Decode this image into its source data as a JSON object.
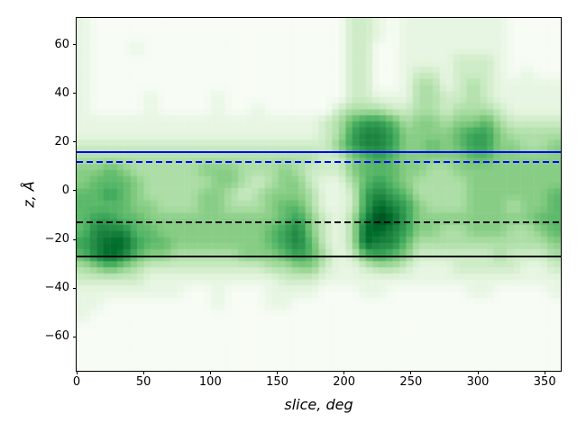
{
  "chart_data": {
    "type": "heatmap",
    "title": "",
    "xlabel": "slice, deg",
    "ylabel": "z, Å",
    "xlim": [
      0,
      362
    ],
    "ylim": [
      -74,
      71
    ],
    "grid": false,
    "xticks": {
      "values": [
        0,
        50,
        100,
        150,
        200,
        250,
        300,
        350
      ],
      "labels": [
        "0",
        "50",
        "100",
        "150",
        "200",
        "250",
        "300",
        "350"
      ]
    },
    "yticks": {
      "values": [
        -60,
        -40,
        -20,
        0,
        20,
        40,
        60
      ],
      "labels": [
        "−60",
        "−40",
        "−20",
        "0",
        "20",
        "40",
        "60"
      ]
    },
    "colormap": {
      "name": "Greens",
      "anchors": [
        "#f7fcf5",
        "#e5f5e0",
        "#c7e9c0",
        "#a1d99b",
        "#74c476",
        "#41ab5d",
        "#238b45",
        "#006d2c",
        "#00441b"
      ]
    },
    "hlines": [
      {
        "y": 16,
        "color": "#0000ff",
        "style": "solid",
        "name": "upper-membrane-line-solid"
      },
      {
        "y": 12,
        "color": "#0000ff",
        "style": "dashed",
        "name": "upper-membrane-line-dashed"
      },
      {
        "y": -13,
        "color": "#000000",
        "style": "dashed",
        "name": "lower-membrane-line-dashed"
      },
      {
        "y": -27,
        "color": "#000000",
        "style": "solid",
        "name": "lower-membrane-line-solid"
      }
    ],
    "heatmap": {
      "x_range_deg": [
        0,
        362
      ],
      "z_range": [
        71,
        -74
      ],
      "n_cols": 36,
      "n_rows": 29,
      "intensity_scale": [
        0,
        9
      ],
      "rows": [
        "100000000000000000002210111111110000",
        "100000000000000000002210111111110000",
        "100010000000000000002200111111110000",
        "100000000000000000002200111122210000",
        "100000000000000000002200122122210100",
        "100000000000000000002200133123211111",
        "100001000010000000002211133223211111",
        "100001000010010000023332233233321111",
        "111111111111111111235665344344532222",
        "111111111111111111236776444456643333",
        "222222222222222222246776445456644334",
        "333333333333333333224565444445544444",
        "445433333444333432224555443344444444",
        "455543333344323442113565433334444444",
        "556543333443234443112676533334444445",
        "555544333443334553112687643334443445",
        "566554444444444564213798644444444455",
        "577755444444445674213887644334443345",
        "678865544444445675213877533333333334",
        "578754433333444565312565422222232223",
        "345432222222223344211233211122222112",
        "222221111111111222111111111111111111",
        "111111110010001111000110000001100001",
        "110000000010001100000000000000000000",
        "100000000000000000000000000000000000",
        "000000000000000000000000000000000000",
        "000000000000000000000000000000000000",
        "000000000000000000000000000000000000",
        "000000000000000000000000000000000000"
      ]
    }
  }
}
